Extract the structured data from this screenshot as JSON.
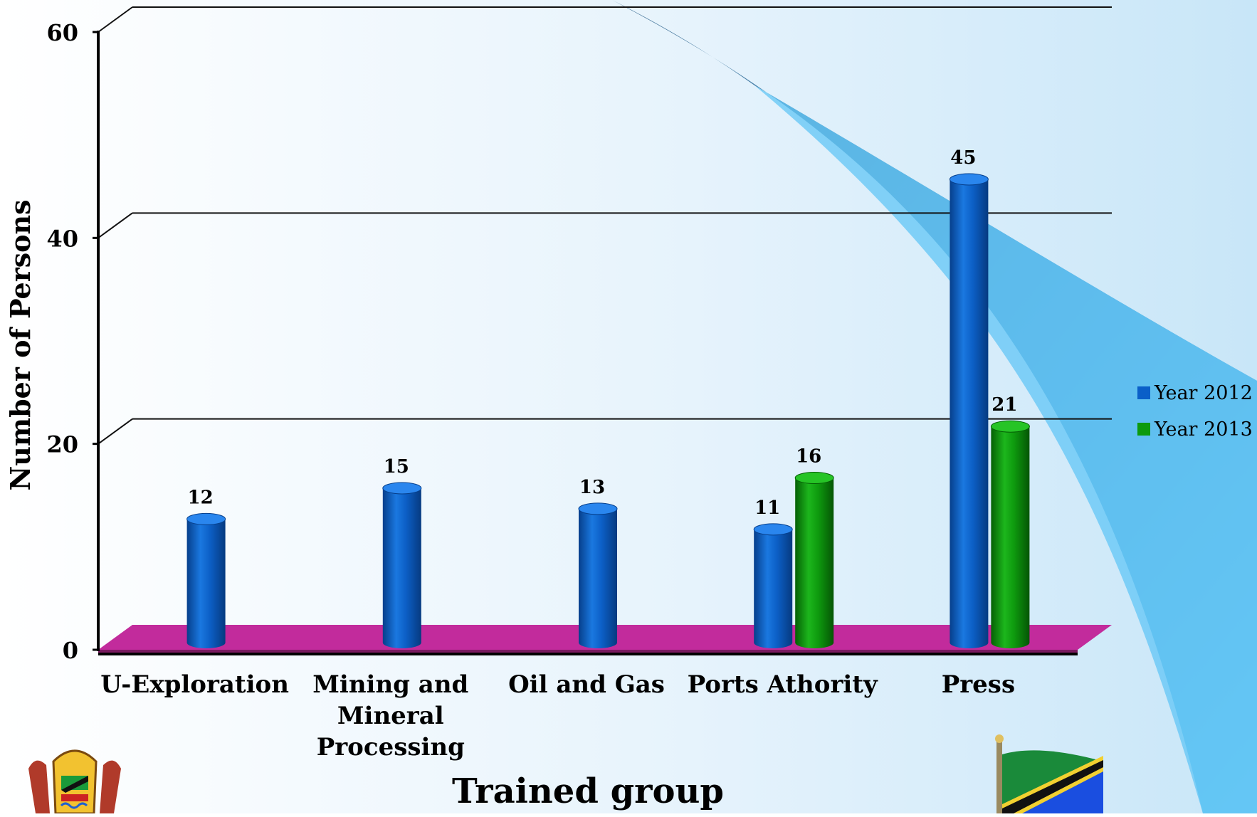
{
  "chart_data": {
    "type": "bar",
    "title": "",
    "xlabel": "Trained group",
    "ylabel": "Number of Persons",
    "ylim": [
      0,
      60
    ],
    "yticks": [
      "0",
      "20",
      "40",
      "60"
    ],
    "categories": [
      [
        "U-Exploration"
      ],
      [
        "Mining and",
        "Mineral",
        "Processing"
      ],
      [
        "Oil and Gas"
      ],
      [
        "Ports Athority"
      ],
      [
        "Press"
      ]
    ],
    "series": [
      {
        "name": "Year 2012",
        "values": [
          12,
          15,
          13,
          11,
          45
        ]
      },
      {
        "name": "Year 2013",
        "values": [
          null,
          null,
          null,
          16,
          21
        ]
      }
    ],
    "legend_position": "right",
    "grid": true,
    "colors": {
      "year2012": "#0a5fc8",
      "year2013": "#0d9a0d",
      "floor": "#c22b9c"
    }
  }
}
